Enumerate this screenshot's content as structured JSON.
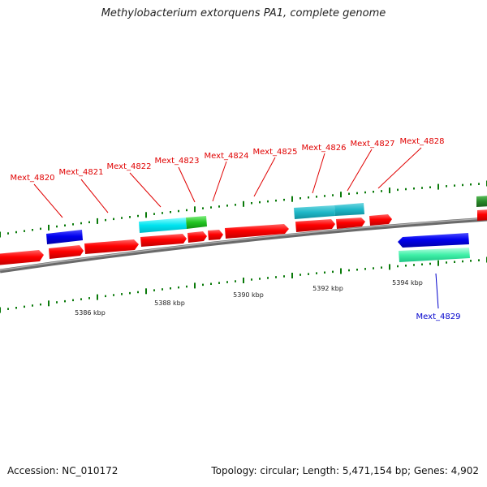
{
  "title": "Methylobacterium extorquens PA1, complete genome",
  "footer": {
    "accession": "Accession: NC_010172",
    "summary": "Topology: circular; Length: 5,471,154 bp; Genes: 4,902"
  },
  "colors": {
    "forward_cds": "#ff0000",
    "reverse_cds": "#0000ee",
    "rna": "#00dddd",
    "misc_feature": "#22c422",
    "backbone": "#808080",
    "tick": "#0a7a0a",
    "label_forward": "#e00000",
    "label_reverse": "#0000cc",
    "scale_text": "#222222"
  },
  "scale_labels": [
    "5386 kbp",
    "5388 kbp",
    "5390 kbp",
    "5392 kbp",
    "5394 kbp"
  ],
  "gene_labels": [
    {
      "id": "Mext_4820",
      "strand": "forward"
    },
    {
      "id": "Mext_4821",
      "strand": "forward"
    },
    {
      "id": "Mext_4822",
      "strand": "forward"
    },
    {
      "id": "Mext_4823",
      "strand": "forward"
    },
    {
      "id": "Mext_4824",
      "strand": "forward"
    },
    {
      "id": "Mext_4825",
      "strand": "forward"
    },
    {
      "id": "Mext_4826",
      "strand": "forward"
    },
    {
      "id": "Mext_4827",
      "strand": "forward"
    },
    {
      "id": "Mext_4828",
      "strand": "forward"
    },
    {
      "id": "Mext_4829",
      "strand": "reverse"
    }
  ]
}
